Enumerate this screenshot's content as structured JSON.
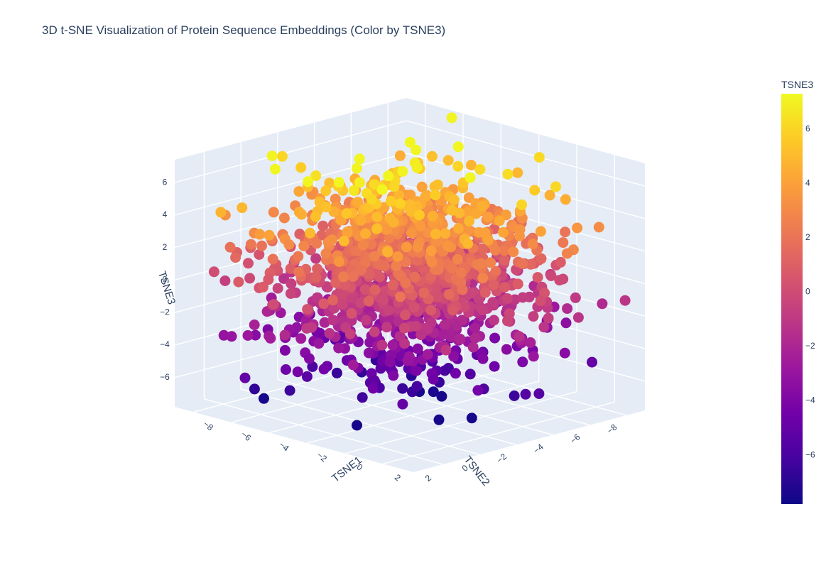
{
  "chart_data": {
    "type": "scatter",
    "subtype": "3d-scatter",
    "title": "3D t-SNE Visualization of Protein Sequence Embeddings (Color by TSNE3)",
    "axes": {
      "x": {
        "label": "TSNE1",
        "ticks": [
          -8,
          -6,
          -4,
          -2,
          0,
          2
        ],
        "range": [
          -9,
          3.6
        ]
      },
      "y": {
        "label": "TSNE2",
        "ticks": [
          -8,
          -6,
          -4,
          -2,
          0,
          2
        ],
        "range": [
          -9,
          3.6
        ]
      },
      "z": {
        "label": "TSNE3",
        "ticks": [
          -6,
          -4,
          -2,
          0,
          2,
          4,
          6
        ],
        "range": [
          -7.8,
          7.4
        ]
      }
    },
    "colorbar": {
      "title": "TSNE3",
      "ticks": [
        -6,
        -4,
        -2,
        0,
        2,
        4,
        6
      ],
      "range": [
        -7.8,
        7.3
      ],
      "colorscale": "Plasma"
    },
    "grid": true,
    "marker": {
      "symbol": "circle",
      "opacity": 1
    },
    "point_cloud": {
      "approx_points": 1400,
      "center": [
        -3.0,
        -3.0,
        0.4
      ],
      "spread": [
        2.6,
        2.6,
        2.8
      ],
      "note": "dense approximately spherical cloud; values estimated from rendering"
    },
    "points": [
      [
        -2.4,
        -2.0,
        7.1
      ],
      [
        -2.7,
        -3.1,
        6.9
      ],
      [
        -3.4,
        -3.7,
        6.8
      ],
      [
        -4.6,
        -5.2,
        5.6
      ],
      [
        -3.0,
        -3.6,
        4.4
      ],
      [
        -1.2,
        -2.4,
        4.6
      ],
      [
        -0.8,
        -5.0,
        3.9
      ],
      [
        -5.2,
        -4.6,
        2.6
      ],
      [
        -2.1,
        -1.5,
        1.8
      ],
      [
        -6.0,
        -4.4,
        1.2
      ],
      [
        -4.0,
        -2.4,
        0.6
      ],
      [
        -1.6,
        -4.7,
        0.1
      ],
      [
        -3.3,
        -5.8,
        -1.1
      ],
      [
        -6.4,
        -4.7,
        -2.0
      ],
      [
        -2.9,
        -1.9,
        -2.5
      ],
      [
        -4.1,
        -3.4,
        -3.4
      ],
      [
        -1.4,
        -2.6,
        -4.2
      ],
      [
        -3.6,
        -3.9,
        -5.6
      ],
      [
        -2.6,
        -4.2,
        -6.6
      ],
      [
        -3.1,
        -4.4,
        -7.4
      ]
    ]
  }
}
